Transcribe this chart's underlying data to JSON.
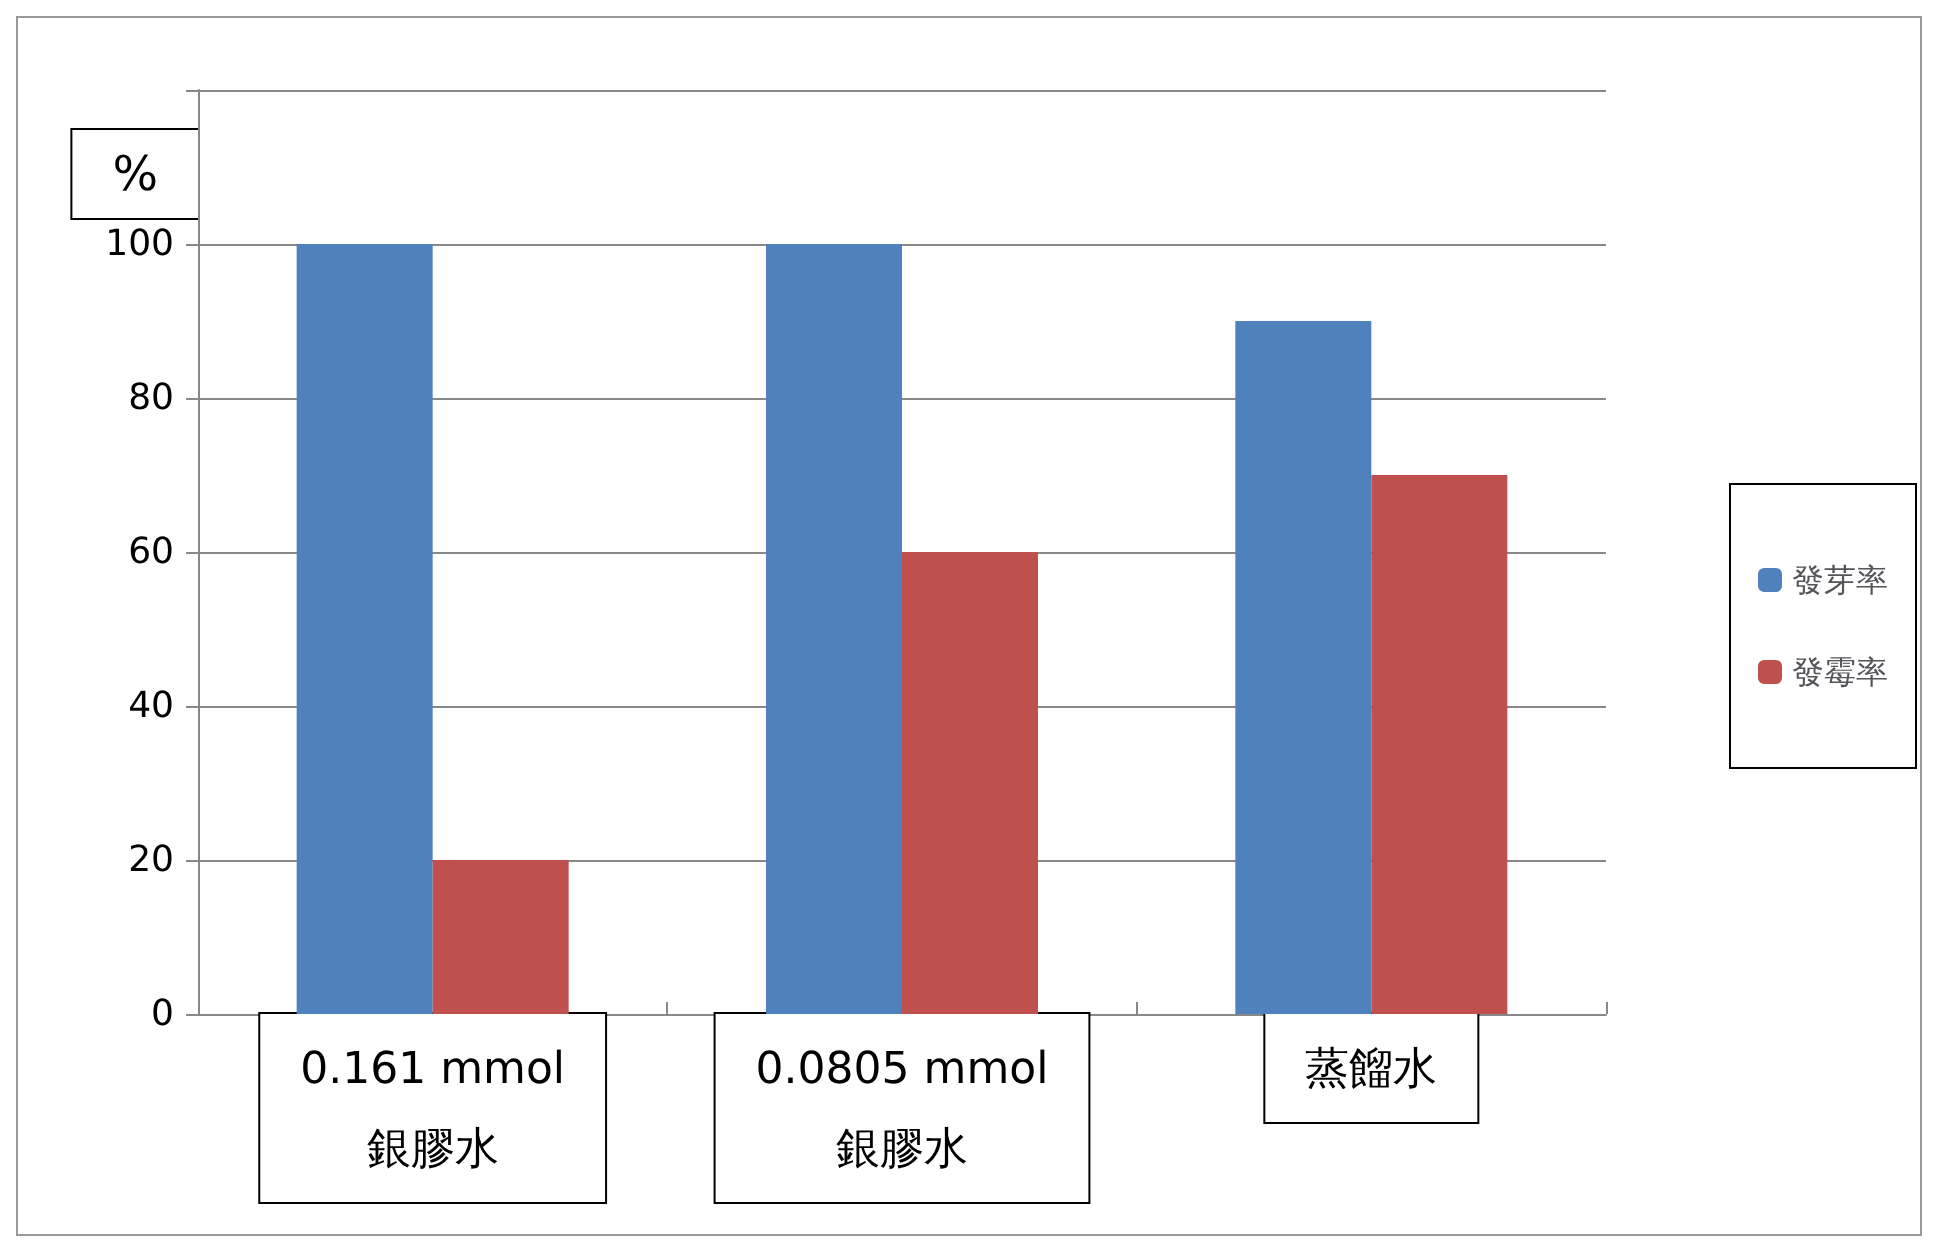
{
  "chart_data": {
    "type": "bar",
    "ylabel": "%",
    "categories": [
      "0.161 mmol\n銀膠水",
      "0.0805 mmol\n銀膠水",
      "蒸餾水"
    ],
    "series": [
      {
        "name": "發芽率",
        "color": "#4f81bd",
        "values": [
          100,
          100,
          90
        ]
      },
      {
        "name": "發霉率",
        "color": "#c0504d",
        "values": [
          20,
          60,
          70
        ]
      }
    ],
    "ylim": [
      0,
      120
    ],
    "yticks": [
      0,
      20,
      40,
      60,
      80,
      100,
      {
        "value": 120,
        "label": null
      }
    ],
    "grid": "y",
    "legend": "right"
  }
}
